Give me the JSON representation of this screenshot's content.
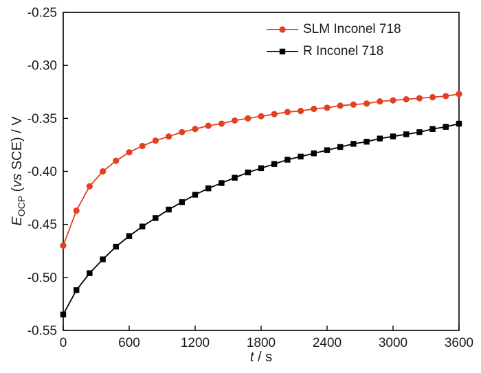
{
  "chart_data": {
    "type": "line",
    "title": "",
    "xlabel": "t / s",
    "ylabel": "E_OCP (vs SCE) / V",
    "xlabel_parts": {
      "symbol": "t",
      "post": " / s"
    },
    "ylabel_parts": {
      "symbol": "E",
      "subscript": "OCP",
      "pre": " (",
      "vs": "vs",
      "post": " SCE) / V"
    },
    "xlim": [
      0,
      3600
    ],
    "ylim": [
      -0.55,
      -0.25
    ],
    "x_ticks": [
      0,
      600,
      1200,
      1800,
      2400,
      3000,
      3600
    ],
    "x_tick_labels": [
      "0",
      "600",
      "1200",
      "1800",
      "2400",
      "3000",
      "3600"
    ],
    "y_ticks": [
      -0.55,
      -0.5,
      -0.45,
      -0.4,
      -0.35,
      -0.3,
      -0.25
    ],
    "y_tick_labels": [
      "-0.55",
      "-0.50",
      "-0.45",
      "-0.40",
      "-0.35",
      "-0.30",
      "-0.25"
    ],
    "grid": false,
    "legend_position": "top-center",
    "x": [
      0,
      120,
      240,
      360,
      480,
      600,
      720,
      840,
      960,
      1080,
      1200,
      1320,
      1440,
      1560,
      1680,
      1800,
      1920,
      2040,
      2160,
      2280,
      2400,
      2520,
      2640,
      2760,
      2880,
      3000,
      3120,
      3240,
      3360,
      3480,
      3600
    ],
    "series": [
      {
        "name": "SLM Inconel 718",
        "color": "#e2401f",
        "marker": "circle",
        "values": [
          -0.47,
          -0.437,
          -0.414,
          -0.4,
          -0.39,
          -0.382,
          -0.376,
          -0.371,
          -0.367,
          -0.363,
          -0.36,
          -0.357,
          -0.355,
          -0.352,
          -0.35,
          -0.348,
          -0.346,
          -0.344,
          -0.343,
          -0.341,
          -0.34,
          -0.338,
          -0.337,
          -0.336,
          -0.334,
          -0.333,
          -0.332,
          -0.331,
          -0.33,
          -0.329,
          -0.327
        ]
      },
      {
        "name": "R Inconel 718",
        "color": "#000000",
        "marker": "square",
        "values": [
          -0.535,
          -0.512,
          -0.496,
          -0.483,
          -0.471,
          -0.461,
          -0.452,
          -0.444,
          -0.436,
          -0.429,
          -0.422,
          -0.416,
          -0.411,
          -0.406,
          -0.401,
          -0.397,
          -0.393,
          -0.389,
          -0.386,
          -0.383,
          -0.38,
          -0.377,
          -0.374,
          -0.372,
          -0.369,
          -0.367,
          -0.365,
          -0.363,
          -0.36,
          -0.358,
          -0.355
        ]
      }
    ]
  }
}
